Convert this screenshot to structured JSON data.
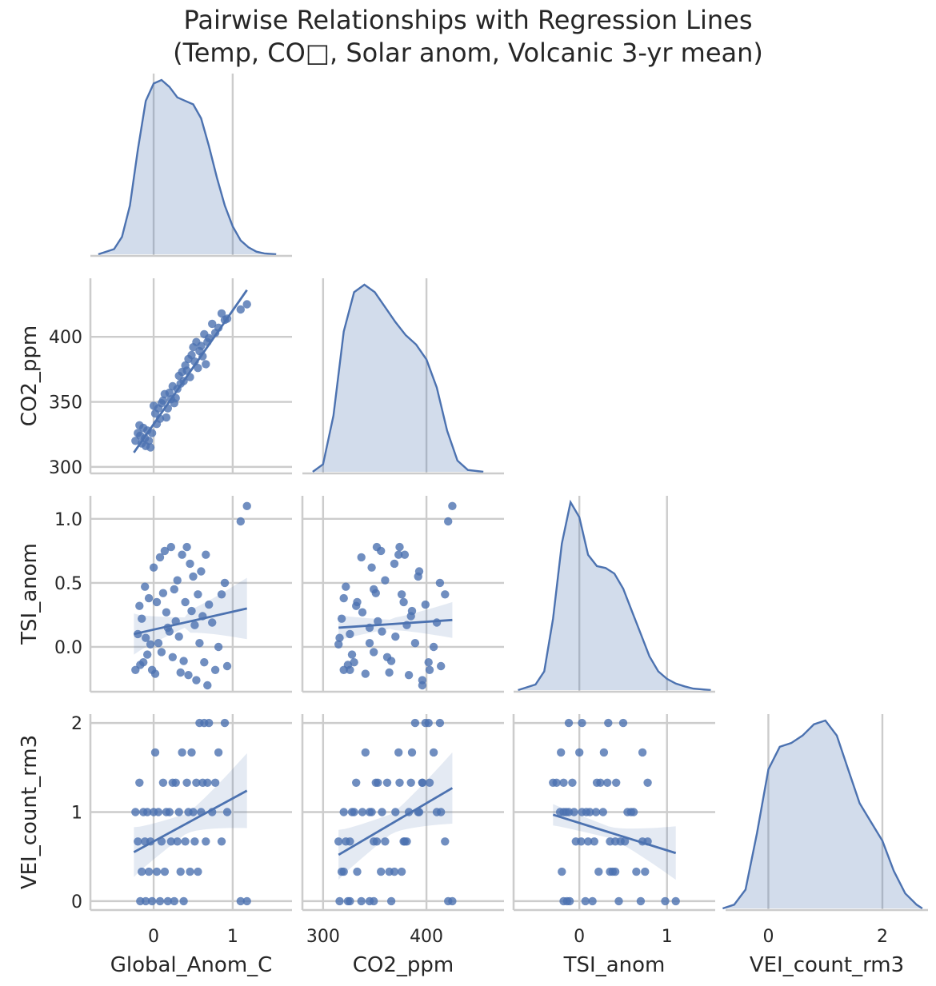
{
  "title_line1": "Pairwise Relationships with Regression Lines",
  "title_line2": "(Temp, CO□, Solar anom, Volcanic 3-yr mean)",
  "colors": {
    "series": "#4c72b0",
    "band": "#dbe2ef",
    "grid": "#cccccc",
    "text": "#262626"
  },
  "chart_data": {
    "type": "pairplot",
    "variables": [
      "Global_Anom_C",
      "CO2_ppm",
      "TSI_anom",
      "VEI_count_rm3"
    ],
    "axes": {
      "Global_Anom_C": {
        "range": [
          -0.8,
          1.75
        ],
        "ticks": [
          0,
          1
        ],
        "tick_labels": [
          "0",
          "1"
        ]
      },
      "CO2_ppm": {
        "range": [
          295,
          445
        ],
        "ticks": [
          300,
          350,
          400
        ],
        "tick_labels": [
          "300",
          "350",
          "400"
        ],
        "x_range": [
          280,
          475
        ],
        "x_ticks": [
          300,
          400
        ],
        "x_tick_labels": [
          "300",
          "400"
        ]
      },
      "TSI_anom": {
        "range": [
          -0.35,
          1.18
        ],
        "ticks": [
          0.0,
          0.5,
          1.0
        ],
        "tick_labels": [
          "0.0",
          "0.5",
          "1.0"
        ],
        "x_range": [
          -0.75,
          1.55
        ],
        "x_ticks": [
          0,
          1
        ],
        "x_tick_labels": [
          "0",
          "1"
        ]
      },
      "VEI_count_rm3": {
        "range": [
          -0.1,
          2.1
        ],
        "ticks": [
          0,
          1,
          2
        ],
        "tick_labels": [
          "0",
          "1",
          "2"
        ],
        "x_range": [
          -0.75,
          2.8
        ],
        "x_ticks": [
          0,
          2
        ],
        "x_tick_labels": [
          "0",
          "2"
        ]
      }
    },
    "diagonal_kde": {
      "Global_Anom_C": [
        [
          -0.7,
          0.0
        ],
        [
          -0.5,
          0.03
        ],
        [
          -0.4,
          0.1
        ],
        [
          -0.3,
          0.28
        ],
        [
          -0.2,
          0.6
        ],
        [
          -0.1,
          0.88
        ],
        [
          0.0,
          0.98
        ],
        [
          0.1,
          1.0
        ],
        [
          0.2,
          0.96
        ],
        [
          0.3,
          0.9
        ],
        [
          0.4,
          0.88
        ],
        [
          0.5,
          0.86
        ],
        [
          0.6,
          0.78
        ],
        [
          0.7,
          0.62
        ],
        [
          0.8,
          0.44
        ],
        [
          0.9,
          0.28
        ],
        [
          1.0,
          0.16
        ],
        [
          1.1,
          0.08
        ],
        [
          1.2,
          0.04
        ],
        [
          1.3,
          0.015
        ],
        [
          1.4,
          0.005
        ],
        [
          1.55,
          0.0
        ]
      ],
      "CO2_ppm": [
        [
          290,
          0.0
        ],
        [
          300,
          0.04
        ],
        [
          310,
          0.3
        ],
        [
          320,
          0.75
        ],
        [
          330,
          0.96
        ],
        [
          340,
          1.0
        ],
        [
          350,
          0.96
        ],
        [
          360,
          0.88
        ],
        [
          370,
          0.8
        ],
        [
          380,
          0.73
        ],
        [
          390,
          0.68
        ],
        [
          400,
          0.6
        ],
        [
          410,
          0.45
        ],
        [
          420,
          0.22
        ],
        [
          430,
          0.06
        ],
        [
          440,
          0.01
        ],
        [
          455,
          0.0
        ]
      ],
      "TSI_anom": [
        [
          -0.7,
          0.0
        ],
        [
          -0.5,
          0.03
        ],
        [
          -0.4,
          0.1
        ],
        [
          -0.3,
          0.38
        ],
        [
          -0.2,
          0.78
        ],
        [
          -0.1,
          1.0
        ],
        [
          0.0,
          0.92
        ],
        [
          0.1,
          0.72
        ],
        [
          0.2,
          0.66
        ],
        [
          0.3,
          0.65
        ],
        [
          0.4,
          0.62
        ],
        [
          0.5,
          0.54
        ],
        [
          0.6,
          0.42
        ],
        [
          0.7,
          0.3
        ],
        [
          0.8,
          0.18
        ],
        [
          0.9,
          0.1
        ],
        [
          1.0,
          0.06
        ],
        [
          1.1,
          0.035
        ],
        [
          1.2,
          0.02
        ],
        [
          1.3,
          0.008
        ],
        [
          1.5,
          0.0
        ]
      ],
      "VEI_count_rm3": [
        [
          -0.8,
          0.0
        ],
        [
          -0.6,
          0.02
        ],
        [
          -0.4,
          0.1
        ],
        [
          -0.2,
          0.4
        ],
        [
          0.0,
          0.74
        ],
        [
          0.2,
          0.86
        ],
        [
          0.4,
          0.88
        ],
        [
          0.6,
          0.92
        ],
        [
          0.8,
          0.98
        ],
        [
          1.0,
          1.0
        ],
        [
          1.2,
          0.92
        ],
        [
          1.4,
          0.74
        ],
        [
          1.6,
          0.56
        ],
        [
          1.8,
          0.46
        ],
        [
          2.0,
          0.36
        ],
        [
          2.2,
          0.2
        ],
        [
          2.4,
          0.08
        ],
        [
          2.6,
          0.02
        ],
        [
          2.7,
          0.0
        ]
      ]
    },
    "scatter": {
      "Global_Anom_C": [
        -0.23,
        -0.2,
        -0.18,
        -0.17,
        -0.15,
        -0.13,
        -0.11,
        -0.1,
        -0.08,
        -0.06,
        -0.04,
        -0.02,
        0.0,
        0.02,
        0.04,
        0.06,
        0.08,
        0.1,
        0.12,
        0.14,
        0.16,
        0.18,
        0.2,
        0.22,
        0.24,
        0.26,
        0.28,
        0.3,
        0.32,
        0.34,
        0.36,
        0.38,
        0.4,
        0.42,
        0.44,
        0.46,
        0.48,
        0.5,
        0.52,
        0.54,
        0.56,
        0.58,
        0.6,
        0.62,
        0.64,
        0.66,
        0.68,
        0.7,
        0.74,
        0.78,
        0.82,
        0.86,
        0.9,
        0.93,
        1.1,
        1.18
      ],
      "CO2_ppm": [
        320,
        326,
        332,
        324,
        318,
        330,
        322,
        316,
        328,
        320,
        315,
        326,
        347,
        341,
        333,
        345,
        337,
        349,
        351,
        356,
        338,
        345,
        357,
        352,
        362,
        349,
        353,
        360,
        370,
        364,
        373,
        366,
        378,
        374,
        383,
        369,
        386,
        392,
        381,
        396,
        376,
        389,
        393,
        385,
        402,
        379,
        396,
        399,
        410,
        403,
        407,
        418,
        413,
        414,
        421,
        425
      ],
      "TSI_anom": [
        -0.18,
        0.1,
        0.32,
        -0.14,
        0.22,
        -0.12,
        0.47,
        0.07,
        -0.06,
        0.38,
        0.02,
        -0.18,
        0.62,
        -0.21,
        0.35,
        0.03,
        0.7,
        -0.04,
        0.42,
        0.75,
        0.27,
        0.15,
        0.12,
        0.78,
        -0.08,
        0.45,
        0.2,
        0.52,
        0.08,
        -0.2,
        0.72,
        -0.11,
        0.35,
        0.78,
        -0.22,
        0.65,
        0.28,
        0.55,
        0.17,
        -0.26,
        0.41,
        0.03,
        0.59,
        0.24,
        -0.12,
        0.72,
        -0.3,
        0.33,
        0.19,
        -0.18,
        0.0,
        0.41,
        0.5,
        -0.15,
        0.98,
        1.1
      ],
      "VEI_count_rm3": [
        1.0,
        0.67,
        1.33,
        0.0,
        0.33,
        1.0,
        0.67,
        0.0,
        1.0,
        0.33,
        0.67,
        0.0,
        1.0,
        1.67,
        0.33,
        1.0,
        0.0,
        0.67,
        1.33,
        0.33,
        1.0,
        0.0,
        1.0,
        0.67,
        1.33,
        0.0,
        1.33,
        0.67,
        1.0,
        0.33,
        1.67,
        0.0,
        0.67,
        1.33,
        1.0,
        0.33,
        1.67,
        1.0,
        0.67,
        1.33,
        0.33,
        2.0,
        1.0,
        1.33,
        2.0,
        0.67,
        1.33,
        2.0,
        1.0,
        1.33,
        1.67,
        0.67,
        2.0,
        1.0,
        0.0,
        0.0
      ]
    },
    "regression": {
      "CO2_ppm~Global_Anom_C": {
        "fit": [
          [
            -0.25,
            311
          ],
          [
            1.18,
            436
          ]
        ],
        "band": 0
      },
      "TSI_anom~Global_Anom_C": {
        "fit": [
          [
            -0.25,
            0.1
          ],
          [
            1.18,
            0.3
          ]
        ],
        "band": [
          0.16,
          0.03,
          0.09,
          0.24
        ]
      },
      "TSI_anom~CO2_ppm": {
        "fit": [
          [
            315,
            0.15
          ],
          [
            425,
            0.21
          ]
        ],
        "band": [
          0.1,
          0.03,
          0.05,
          0.14
        ]
      },
      "VEI_count_rm3~Global_Anom_C": {
        "fit": [
          [
            -0.25,
            0.55
          ],
          [
            1.18,
            1.24
          ]
        ],
        "band": [
          0.28,
          0.1,
          0.12,
          0.42
        ]
      },
      "VEI_count_rm3~CO2_ppm": {
        "fit": [
          [
            315,
            0.52
          ],
          [
            425,
            1.27
          ]
        ],
        "band": [
          0.28,
          0.1,
          0.12,
          0.4
        ]
      },
      "VEI_count_rm3~TSI_anom": {
        "fit": [
          [
            -0.3,
            0.97
          ],
          [
            1.1,
            0.54
          ]
        ],
        "band": [
          0.12,
          0.06,
          0.07,
          0.3
        ]
      }
    }
  }
}
